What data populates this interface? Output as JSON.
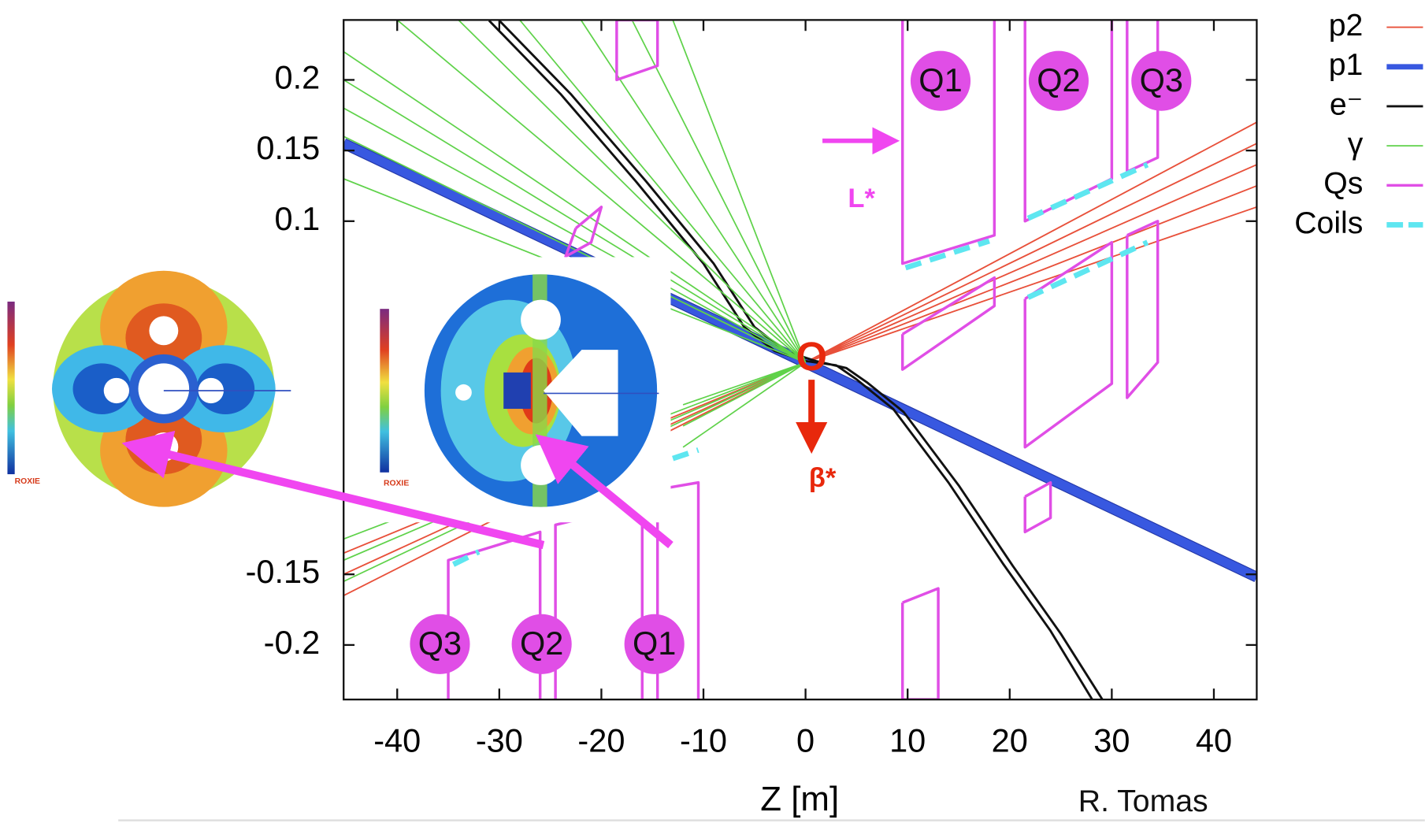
{
  "chart_data": {
    "type": "line",
    "xlabel": "Z [m]",
    "xlim": [
      -45.25,
      44.2
    ],
    "ylim": [
      -0.2386,
      0.2424
    ],
    "xticks": [
      -40,
      -30,
      -20,
      -10,
      0,
      10,
      20,
      30,
      40
    ],
    "yticks": [
      0.2,
      0.15,
      0.1,
      -0.15,
      -0.2
    ],
    "legend": "upper right",
    "series": [
      {
        "name": "p2",
        "color": "#e8503a",
        "width": 1.6,
        "x": [
          0,
          44.2,
          null,
          0,
          44.2,
          null,
          0,
          44.2,
          null,
          0,
          44.2,
          null,
          0,
          44.2,
          null,
          0,
          -45.25,
          null,
          0,
          -45.25,
          null,
          0,
          -45.25
        ],
        "values": [
          0,
          0.17,
          null,
          0,
          0.155,
          null,
          0,
          0.14,
          null,
          0,
          0.125,
          null,
          0,
          0.11,
          null,
          0,
          -0.135,
          null,
          0,
          -0.15,
          null,
          0,
          -0.165
        ]
      },
      {
        "name": "p1",
        "color": "#3858e0",
        "width": 10,
        "x": [
          -45.25,
          44.2
        ],
        "values": [
          0.155,
          -0.152
        ]
      },
      {
        "name": "e⁻",
        "color": "#111111",
        "width": 2.5,
        "x": [
          -31,
          -24,
          -16.6,
          -10,
          -6,
          -3,
          0,
          3,
          5,
          8.6,
          14,
          19.3,
          24,
          28.2,
          null,
          -30,
          -23,
          -15.6,
          -9,
          -5,
          -2,
          1,
          4,
          6,
          9.6,
          15,
          20.3,
          25,
          29.2
        ],
        "values": [
          0.242,
          0.19,
          0.128,
          0.07,
          0.025,
          0.008,
          0.001,
          -0.002,
          -0.012,
          -0.033,
          -0.085,
          -0.142,
          -0.19,
          -0.24,
          null,
          0.242,
          0.19,
          0.128,
          0.07,
          0.025,
          0.008,
          0.001,
          -0.004,
          -0.014,
          -0.035,
          -0.087,
          -0.144,
          -0.192,
          -0.24
        ]
      },
      {
        "name": "γ",
        "color": "#5fd24a",
        "width": 1.5,
        "x": [
          0,
          -45.25,
          null,
          0,
          -45.25,
          null,
          0,
          -45.25,
          null,
          0,
          -45.25,
          null,
          0,
          -45.25,
          null,
          0,
          -40,
          null,
          0,
          -34,
          null,
          0,
          -28,
          null,
          0,
          -22,
          null,
          0,
          -17,
          null,
          0,
          -13,
          null,
          0,
          -45.25,
          null,
          0,
          -45.25,
          null,
          0,
          -45.25,
          null,
          0,
          -12,
          null,
          0,
          -12,
          null,
          0,
          -12
        ],
        "values": [
          0,
          0.22,
          null,
          0,
          0.2,
          null,
          0,
          0.18,
          null,
          0,
          0.16,
          null,
          0,
          0.13,
          null,
          0,
          0.2424,
          null,
          0,
          0.2424,
          null,
          0,
          0.2424,
          null,
          0,
          0.2424,
          null,
          0,
          0.2424,
          null,
          0,
          0.2424,
          null,
          0,
          -0.125,
          null,
          0,
          -0.14,
          null,
          0,
          -0.155,
          null,
          0,
          -0.03,
          null,
          0,
          -0.045,
          null,
          0,
          -0.06
        ]
      },
      {
        "name": "Qs",
        "color": "#e04ee6",
        "width": 3,
        "x": [
          9.5,
          9.5,
          18.5,
          18.5,
          null,
          21.5,
          21.5,
          30,
          30,
          null,
          31.5,
          31.5,
          34.5,
          34.5,
          null,
          9.5,
          9.5,
          18.5,
          18.5,
          9.5,
          null,
          21.5,
          21.5,
          30,
          30,
          21.5,
          null,
          31.5,
          31.5,
          34.5,
          34.5,
          31.5,
          null,
          -35,
          -35,
          -26,
          -26,
          null,
          -24.5,
          -24.5,
          -16,
          -16,
          null,
          -14.5,
          -14.5,
          -10.5,
          -10.5,
          null,
          -18.5,
          -18.5,
          -14.5,
          -14.5,
          -18.5,
          null,
          -22.5,
          -20,
          -21,
          -23.5,
          -22.5,
          null,
          21.5,
          24,
          24,
          21.5,
          21.5,
          null,
          9.5,
          13,
          13,
          9.5,
          9.5
        ],
        "values": [
          0.2424,
          0.07,
          0.09,
          0.2424,
          null,
          0.2424,
          0.1,
          0.13,
          0.2424,
          null,
          0.2424,
          0.135,
          0.145,
          0.2424,
          null,
          0.02,
          -0.005,
          0.04,
          0.06,
          0.02,
          null,
          0.045,
          -0.06,
          -0.015,
          0.085,
          0.045,
          null,
          0.09,
          -0.025,
          0.0,
          0.1,
          0.09,
          null,
          -0.2386,
          -0.14,
          -0.12,
          -0.2386,
          null,
          -0.2386,
          -0.115,
          -0.1,
          -0.2386,
          null,
          -0.2386,
          -0.09,
          -0.085,
          -0.2386,
          null,
          0.2424,
          0.2,
          0.21,
          0.2424,
          0.2424,
          null,
          0.095,
          0.11,
          0.085,
          0.075,
          0.095,
          null,
          -0.095,
          -0.085,
          -0.11,
          -0.12,
          -0.095,
          null,
          -0.17,
          -0.16,
          -0.2386,
          -0.2386,
          -0.17
        ]
      },
      {
        "name": "Coils",
        "color": "#5ee6f0",
        "width": 6,
        "x": [
          9.8,
          18,
          null,
          21.8,
          33.5,
          null,
          21.8,
          33.5,
          null,
          -34.5,
          -32,
          null,
          -13,
          -10.5
        ],
        "values": [
          0.067,
          0.086,
          null,
          0.102,
          0.14,
          null,
          0.046,
          0.085,
          null,
          -0.143,
          -0.134,
          null,
          -0.068,
          -0.062
        ]
      }
    ],
    "annotations": [
      "Q1",
      "Q2",
      "Q3",
      "Q3",
      "Q2",
      "Q1",
      "L*",
      "O",
      "β*",
      "R. Tomas",
      "ROXIE",
      "ROXIE"
    ]
  }
}
